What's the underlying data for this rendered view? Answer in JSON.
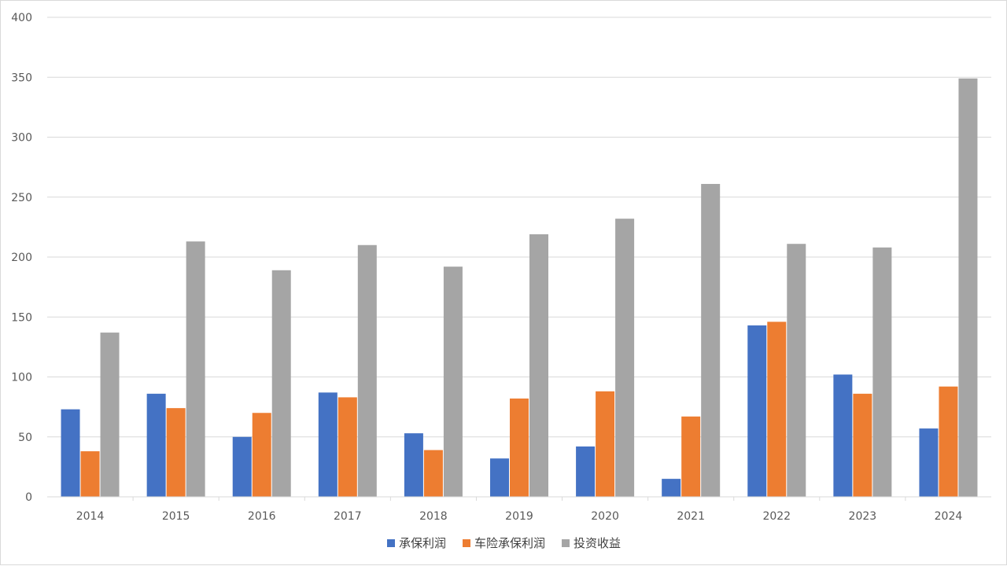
{
  "chart_data": {
    "type": "bar",
    "title": "",
    "xlabel": "",
    "ylabel": "",
    "ylim": [
      0,
      400
    ],
    "yticks": [
      0,
      50,
      100,
      150,
      200,
      250,
      300,
      350,
      400
    ],
    "grid": true,
    "legend_position": "bottom",
    "categories": [
      "2014",
      "2015",
      "2016",
      "2017",
      "2018",
      "2019",
      "2020",
      "2021",
      "2022",
      "2023",
      "2024"
    ],
    "series": [
      {
        "name": "承保利润",
        "color": "#4472c4",
        "values": [
          73,
          86,
          50,
          87,
          53,
          32,
          42,
          15,
          143,
          102,
          57
        ]
      },
      {
        "name": "车险承保利润",
        "color": "#ed7d31",
        "values": [
          38,
          74,
          70,
          83,
          39,
          82,
          88,
          67,
          146,
          86,
          92
        ]
      },
      {
        "name": "投资收益",
        "color": "#a5a5a5",
        "values": [
          137,
          213,
          189,
          210,
          192,
          219,
          232,
          261,
          211,
          208,
          349
        ]
      }
    ]
  }
}
